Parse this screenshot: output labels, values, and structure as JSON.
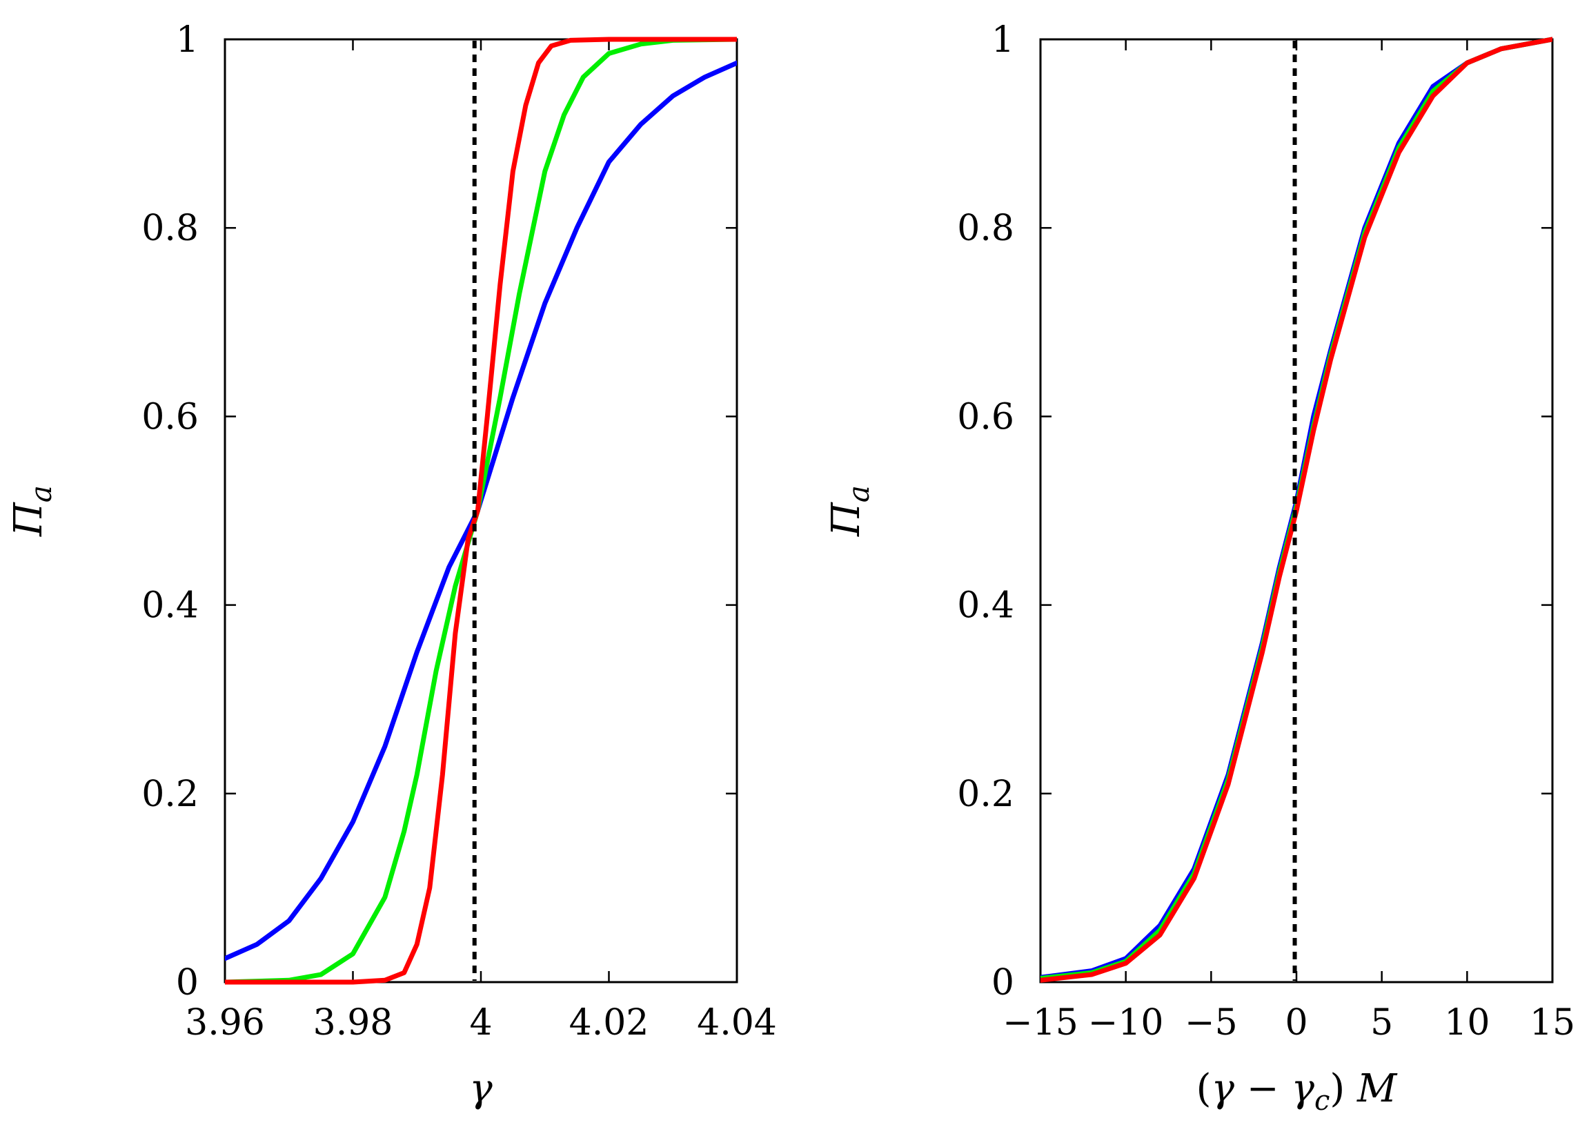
{
  "chart_data": [
    {
      "type": "line",
      "panel": "left",
      "xlabel": "γ",
      "ylabel": "Πa",
      "ylabel_main": "Π",
      "ylabel_sub": "a",
      "xlim": [
        3.96,
        4.04
      ],
      "ylim": [
        0,
        1
      ],
      "xticks": [
        3.96,
        3.98,
        4,
        4.02,
        4.04
      ],
      "xtick_labels": [
        "3.96",
        "3.98",
        "4",
        "4.02",
        "4.04"
      ],
      "yticks": [
        0,
        0.2,
        0.4,
        0.6,
        0.8,
        1
      ],
      "ytick_labels": [
        "0",
        "0.2",
        "0.4",
        "0.6",
        "0.8",
        "1"
      ],
      "critical_line_x": 3.999,
      "series": [
        {
          "name": "blue",
          "color": "#0000ff",
          "x": [
            3.96,
            3.965,
            3.97,
            3.975,
            3.98,
            3.985,
            3.99,
            3.995,
            3.9995,
            4.005,
            4.01,
            4.015,
            4.02,
            4.025,
            4.03,
            4.035,
            4.04
          ],
          "y": [
            0.025,
            0.04,
            0.065,
            0.11,
            0.17,
            0.25,
            0.35,
            0.44,
            0.5,
            0.62,
            0.72,
            0.8,
            0.87,
            0.91,
            0.94,
            0.96,
            0.975
          ]
        },
        {
          "name": "green",
          "color": "#00ee00",
          "x": [
            3.96,
            3.97,
            3.975,
            3.98,
            3.985,
            3.988,
            3.99,
            3.993,
            3.996,
            3.9995,
            4.003,
            4.006,
            4.01,
            4.013,
            4.016,
            4.02,
            4.025,
            4.03,
            4.04
          ],
          "y": [
            0,
            0.002,
            0.008,
            0.03,
            0.09,
            0.16,
            0.22,
            0.33,
            0.42,
            0.5,
            0.62,
            0.73,
            0.86,
            0.92,
            0.96,
            0.985,
            0.995,
            0.999,
            1
          ]
        },
        {
          "name": "red",
          "color": "#ff0000",
          "x": [
            3.96,
            3.98,
            3.985,
            3.988,
            3.99,
            3.992,
            3.994,
            3.996,
            3.998,
            3.9995,
            4.001,
            4.003,
            4.005,
            4.007,
            4.009,
            4.011,
            4.014,
            4.02,
            4.04
          ],
          "y": [
            0,
            0,
            0.002,
            0.01,
            0.04,
            0.1,
            0.22,
            0.37,
            0.47,
            0.5,
            0.6,
            0.74,
            0.86,
            0.93,
            0.975,
            0.993,
            0.999,
            1,
            1
          ]
        }
      ]
    },
    {
      "type": "line",
      "panel": "right",
      "xlabel": "(γ − γc) M",
      "xlabel_parts": {
        "open": "(",
        "gamma": "γ",
        "minus": "−",
        "gamma_c": "γ",
        "sub_c": "c",
        "close": ")",
        "m": "M"
      },
      "ylabel": "Πa",
      "ylabel_main": "Π",
      "ylabel_sub": "a",
      "xlim": [
        -15,
        15
      ],
      "ylim": [
        0,
        1
      ],
      "xticks": [
        -15,
        -10,
        -5,
        0,
        5,
        10,
        15
      ],
      "xtick_labels": [
        "−15",
        "−10",
        "−5",
        "0",
        "5",
        "10",
        "15"
      ],
      "yticks": [
        0,
        0.2,
        0.4,
        0.6,
        0.8,
        1
      ],
      "ytick_labels": [
        "0",
        "0.2",
        "0.4",
        "0.6",
        "0.8",
        "1"
      ],
      "critical_line_x": -0.1,
      "series": [
        {
          "name": "blue",
          "color": "#0000ff",
          "x": [
            -15,
            -12,
            -10,
            -8,
            -6,
            -4,
            -2,
            -1,
            0,
            1,
            2,
            4,
            6,
            8,
            10,
            12,
            15
          ],
          "y": [
            0.005,
            0.012,
            0.025,
            0.06,
            0.12,
            0.22,
            0.36,
            0.44,
            0.51,
            0.6,
            0.67,
            0.8,
            0.89,
            0.95,
            0.975,
            0.99,
            1
          ]
        },
        {
          "name": "green",
          "color": "#00ee00",
          "x": [
            -15,
            -12,
            -10,
            -8,
            -6,
            -4,
            -2,
            -1,
            0,
            1,
            2,
            4,
            6,
            8,
            10,
            12,
            15
          ],
          "y": [
            0.004,
            0.01,
            0.022,
            0.055,
            0.115,
            0.215,
            0.355,
            0.435,
            0.505,
            0.59,
            0.665,
            0.795,
            0.885,
            0.945,
            0.975,
            0.99,
            1
          ]
        },
        {
          "name": "red",
          "color": "#ff0000",
          "x": [
            -15,
            -12,
            -10,
            -8,
            -6,
            -4,
            -2,
            -1,
            0,
            1,
            2,
            4,
            6,
            8,
            10,
            12,
            15
          ],
          "y": [
            0.002,
            0.008,
            0.02,
            0.05,
            0.11,
            0.21,
            0.35,
            0.43,
            0.5,
            0.585,
            0.66,
            0.79,
            0.88,
            0.94,
            0.975,
            0.99,
            1
          ]
        }
      ]
    }
  ]
}
